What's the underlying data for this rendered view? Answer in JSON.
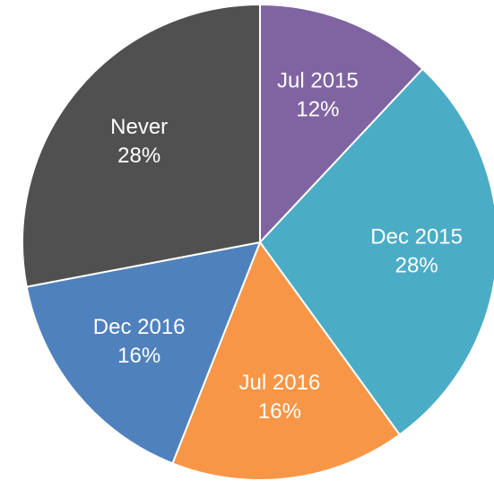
{
  "chart_data": {
    "type": "pie",
    "categories": [
      "Jul 2015",
      "Dec 2015",
      "Jul 2016",
      "Dec 2016",
      "Never"
    ],
    "values": [
      12,
      28,
      16,
      16,
      28
    ],
    "value_labels": [
      "12%",
      "28%",
      "16%",
      "16%",
      "28%"
    ],
    "colors": [
      "#8064a2",
      "#4bacc6",
      "#f79646",
      "#4f81bd",
      "#505050"
    ]
  }
}
